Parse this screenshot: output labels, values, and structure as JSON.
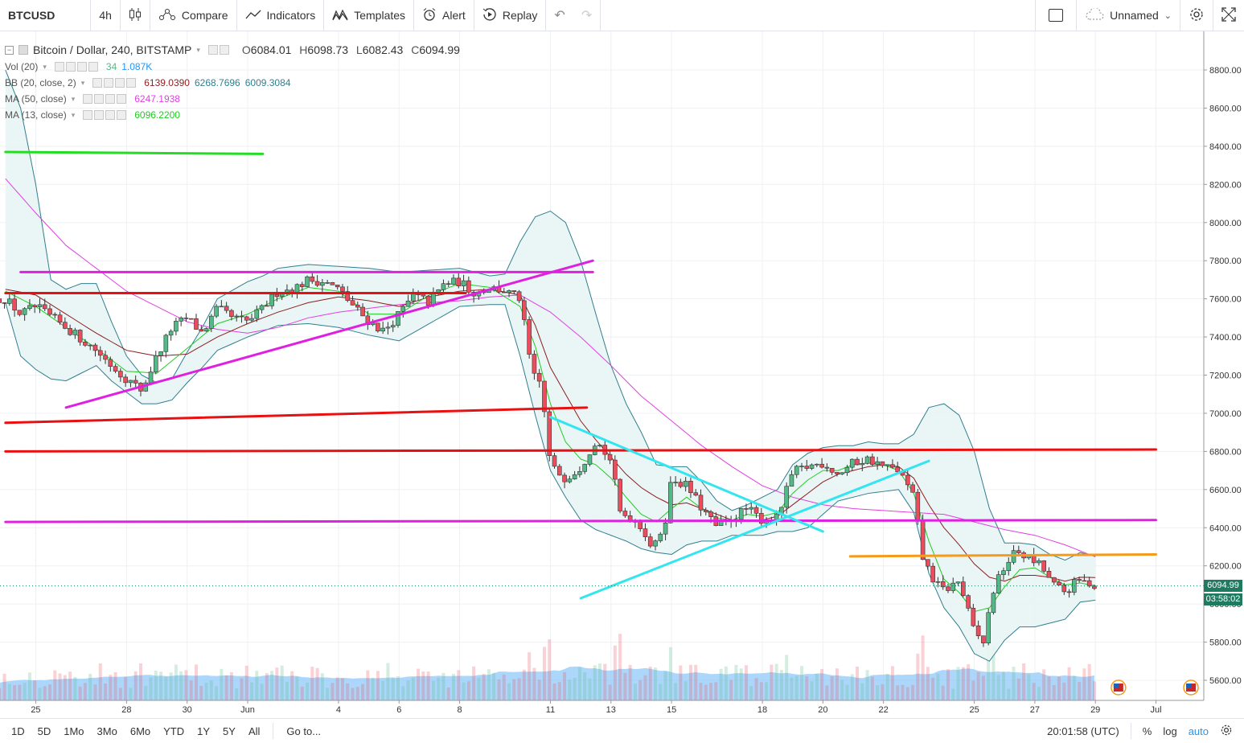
{
  "toolbar": {
    "symbol": "BTCUSD",
    "interval": "4h",
    "compare": "Compare",
    "indicators": "Indicators",
    "templates": "Templates",
    "alert": "Alert",
    "replay": "Replay",
    "layout_name": "Unnamed"
  },
  "legend": {
    "title": "Bitcoin / Dollar, 240, BITSTAMP",
    "ohlc": {
      "o_label": "O",
      "o": "6084.01",
      "h_label": "H",
      "h": "6098.73",
      "l_label": "L",
      "l": "6082.43",
      "c_label": "C",
      "c": "6094.99"
    },
    "vol": {
      "name": "Vol (20)",
      "v1": "34",
      "v2": "1.087K"
    },
    "bb": {
      "name": "BB (20, close, 2)",
      "v1": "6139.0390",
      "v2": "6268.7696",
      "v3": "6009.3084"
    },
    "ma50": {
      "name": "MA (50, close)",
      "v": "6247.1938"
    },
    "ma13": {
      "name": "MA (13, close)",
      "v": "6096.2200"
    }
  },
  "colors": {
    "up": "#53b987",
    "down": "#eb4d5c",
    "bb_line": "#2f7f8f",
    "bb_fill": "#e8f4f4",
    "ma50": "#e040e0",
    "ma13": "#22cc22",
    "ma20": "#8b1e1e",
    "vol_area": "#90caf9",
    "red_line": "#e81010",
    "magenta_line": "#e020e0",
    "green_line": "#22dd22",
    "cyan_line": "#33e5ef",
    "orange_line": "#f59a1a",
    "badge": "#1e7b5f"
  },
  "bottombar": {
    "ranges": [
      "1D",
      "5D",
      "1Mo",
      "3Mo",
      "6Mo",
      "YTD",
      "1Y",
      "5Y",
      "All"
    ],
    "goto": "Go to...",
    "time": "20:01:58 (UTC)",
    "pct": "%",
    "log": "log",
    "auto": "auto"
  },
  "chart_data": {
    "type": "candlestick",
    "title": "Bitcoin / Dollar, 240, BITSTAMP",
    "y_axis": {
      "min": 5520,
      "max": 8880,
      "ticks": [
        5600,
        5800,
        6000,
        6200,
        6400,
        6600,
        6800,
        7000,
        7200,
        7400,
        7600,
        7800,
        8000,
        8200,
        8400,
        8600,
        8800
      ],
      "tick_labels": [
        "5600.00",
        "5800.00",
        "6000.00",
        "6200.00",
        "6400.00",
        "6600.00",
        "6800.00",
        "7000.00",
        "7200.00",
        "7400.00",
        "7600.00",
        "7800.00",
        "8000.00",
        "8200.00",
        "8400.00",
        "8600.00",
        "8800.00"
      ]
    },
    "x_axis": {
      "labels": [
        "25",
        "28",
        "30",
        "Jun",
        "4",
        "6",
        "8",
        "11",
        "13",
        "15",
        "18",
        "20",
        "22",
        "25",
        "27",
        "29",
        "Jul"
      ],
      "label_days": [
        -7,
        -4,
        -2,
        0,
        3,
        5,
        7,
        10,
        12,
        14,
        17,
        19,
        21,
        24,
        26,
        28,
        30
      ]
    },
    "last_price": "6094.99",
    "countdown": "03:58:02",
    "close_keypoints": [
      [
        -8.0,
        7600
      ],
      [
        -7.5,
        7520
      ],
      [
        -7.0,
        7560
      ],
      [
        -6.0,
        7450
      ],
      [
        -5.0,
        7330
      ],
      [
        -4.5,
        7250
      ],
      [
        -4.0,
        7180
      ],
      [
        -3.5,
        7120
      ],
      [
        -3.0,
        7300
      ],
      [
        -2.5,
        7450
      ],
      [
        -2.0,
        7500
      ],
      [
        -1.5,
        7420
      ],
      [
        -1.0,
        7550
      ],
      [
        -0.5,
        7500
      ],
      [
        0.0,
        7480
      ],
      [
        0.5,
        7550
      ],
      [
        1.0,
        7640
      ],
      [
        1.5,
        7650
      ],
      [
        2.0,
        7700
      ],
      [
        2.5,
        7690
      ],
      [
        3.0,
        7650
      ],
      [
        3.5,
        7560
      ],
      [
        4.0,
        7480
      ],
      [
        4.5,
        7430
      ],
      [
        5.0,
        7520
      ],
      [
        5.5,
        7620
      ],
      [
        6.0,
        7580
      ],
      [
        6.5,
        7680
      ],
      [
        7.0,
        7690
      ],
      [
        7.5,
        7630
      ],
      [
        8.0,
        7660
      ],
      [
        8.5,
        7640
      ],
      [
        9.0,
        7600
      ],
      [
        9.4,
        7200
      ],
      [
        9.7,
        7150
      ],
      [
        10.0,
        6720
      ],
      [
        10.5,
        6660
      ],
      [
        11.0,
        6720
      ],
      [
        11.5,
        6860
      ],
      [
        12.0,
        6750
      ],
      [
        12.3,
        6480
      ],
      [
        12.7,
        6450
      ],
      [
        13.0,
        6410
      ],
      [
        13.4,
        6280
      ],
      [
        13.8,
        6450
      ],
      [
        14.0,
        6660
      ],
      [
        14.5,
        6620
      ],
      [
        15.0,
        6500
      ],
      [
        15.5,
        6400
      ],
      [
        16.0,
        6450
      ],
      [
        16.5,
        6500
      ],
      [
        17.0,
        6440
      ],
      [
        17.5,
        6450
      ],
      [
        18.0,
        6690
      ],
      [
        18.5,
        6720
      ],
      [
        19.0,
        6740
      ],
      [
        19.5,
        6680
      ],
      [
        20.0,
        6740
      ],
      [
        20.5,
        6760
      ],
      [
        21.0,
        6720
      ],
      [
        21.5,
        6700
      ],
      [
        22.0,
        6560
      ],
      [
        22.3,
        6240
      ],
      [
        22.7,
        6110
      ],
      [
        23.0,
        6070
      ],
      [
        23.5,
        6120
      ],
      [
        24.0,
        5850
      ],
      [
        24.3,
        5800
      ],
      [
        24.6,
        6060
      ],
      [
        25.0,
        6200
      ],
      [
        25.4,
        6280
      ],
      [
        25.8,
        6240
      ],
      [
        26.2,
        6200
      ],
      [
        26.6,
        6100
      ],
      [
        27.0,
        6060
      ],
      [
        27.4,
        6120
      ],
      [
        27.8,
        6110
      ],
      [
        28.0,
        6095
      ]
    ],
    "bb_upper_keypoints": [
      [
        -8,
        8800
      ],
      [
        -7.5,
        8600
      ],
      [
        -7,
        8200
      ],
      [
        -6.5,
        7700
      ],
      [
        -6,
        7650
      ],
      [
        -5.5,
        7680
      ],
      [
        -5,
        7680
      ],
      [
        -4.5,
        7480
      ],
      [
        -4,
        7300
      ],
      [
        -3.5,
        7200
      ],
      [
        -3,
        7160
      ],
      [
        -2.5,
        7180
      ],
      [
        -2,
        7320
      ],
      [
        -1.5,
        7450
      ],
      [
        -1,
        7600
      ],
      [
        0,
        7690
      ],
      [
        0.5,
        7720
      ],
      [
        1,
        7760
      ],
      [
        2,
        7780
      ],
      [
        3,
        7770
      ],
      [
        4,
        7760
      ],
      [
        5,
        7740
      ],
      [
        6,
        7750
      ],
      [
        7,
        7760
      ],
      [
        8,
        7720
      ],
      [
        8.5,
        7730
      ],
      [
        9,
        7900
      ],
      [
        9.5,
        8030
      ],
      [
        10,
        8060
      ],
      [
        10.5,
        8000
      ],
      [
        11,
        7800
      ],
      [
        11.5,
        7520
      ],
      [
        12,
        7250
      ],
      [
        12.5,
        7050
      ],
      [
        13,
        6900
      ],
      [
        13.5,
        6730
      ],
      [
        14,
        6720
      ],
      [
        14.5,
        6720
      ],
      [
        15,
        6640
      ],
      [
        15.5,
        6540
      ],
      [
        16,
        6490
      ],
      [
        16.5,
        6520
      ],
      [
        17,
        6560
      ],
      [
        17.5,
        6600
      ],
      [
        18,
        6730
      ],
      [
        18.5,
        6790
      ],
      [
        19,
        6820
      ],
      [
        19.5,
        6830
      ],
      [
        20,
        6830
      ],
      [
        20.5,
        6850
      ],
      [
        21,
        6840
      ],
      [
        21.5,
        6840
      ],
      [
        22,
        6890
      ],
      [
        22.5,
        7030
      ],
      [
        23,
        7050
      ],
      [
        23.5,
        6990
      ],
      [
        24,
        6800
      ],
      [
        24.5,
        6500
      ],
      [
        25,
        6320
      ],
      [
        25.5,
        6320
      ],
      [
        26,
        6310
      ],
      [
        26.5,
        6260
      ],
      [
        27,
        6230
      ],
      [
        27.5,
        6270
      ],
      [
        28,
        6250
      ]
    ],
    "bb_lower_keypoints": [
      [
        -8,
        7580
      ],
      [
        -7.5,
        7300
      ],
      [
        -7,
        7230
      ],
      [
        -6.5,
        7180
      ],
      [
        -6,
        7170
      ],
      [
        -5.5,
        7210
      ],
      [
        -5,
        7250
      ],
      [
        -4.5,
        7170
      ],
      [
        -4,
        7110
      ],
      [
        -3.5,
        7050
      ],
      [
        -3,
        7050
      ],
      [
        -2.5,
        7070
      ],
      [
        -2,
        7160
      ],
      [
        -1.5,
        7240
      ],
      [
        -1,
        7330
      ],
      [
        0,
        7400
      ],
      [
        0.5,
        7430
      ],
      [
        1,
        7460
      ],
      [
        2,
        7470
      ],
      [
        3,
        7450
      ],
      [
        4,
        7410
      ],
      [
        5,
        7380
      ],
      [
        6,
        7470
      ],
      [
        7,
        7560
      ],
      [
        8,
        7570
      ],
      [
        8.5,
        7570
      ],
      [
        9,
        7300
      ],
      [
        9.5,
        6990
      ],
      [
        10,
        6700
      ],
      [
        10.5,
        6560
      ],
      [
        11,
        6440
      ],
      [
        11.5,
        6390
      ],
      [
        12,
        6360
      ],
      [
        12.5,
        6330
      ],
      [
        13,
        6290
      ],
      [
        13.5,
        6270
      ],
      [
        14,
        6260
      ],
      [
        14.5,
        6310
      ],
      [
        15,
        6330
      ],
      [
        15.5,
        6330
      ],
      [
        16,
        6360
      ],
      [
        16.5,
        6360
      ],
      [
        17,
        6360
      ],
      [
        17.5,
        6380
      ],
      [
        18,
        6380
      ],
      [
        18.5,
        6400
      ],
      [
        19,
        6470
      ],
      [
        19.5,
        6540
      ],
      [
        20,
        6560
      ],
      [
        20.5,
        6580
      ],
      [
        21,
        6590
      ],
      [
        21.5,
        6600
      ],
      [
        22,
        6480
      ],
      [
        22.5,
        6160
      ],
      [
        23,
        5980
      ],
      [
        23.5,
        5880
      ],
      [
        24,
        5740
      ],
      [
        24.5,
        5700
      ],
      [
        25,
        5810
      ],
      [
        25.5,
        5880
      ],
      [
        26,
        5880
      ],
      [
        26.5,
        5900
      ],
      [
        27,
        5920
      ],
      [
        27.5,
        6010
      ],
      [
        28,
        6020
      ]
    ],
    "ma20_keypoints": [
      [
        -8,
        7650
      ],
      [
        -7,
        7620
      ],
      [
        -6,
        7520
      ],
      [
        -5,
        7420
      ],
      [
        -4,
        7330
      ],
      [
        -3,
        7300
      ],
      [
        -2,
        7310
      ],
      [
        -1,
        7400
      ],
      [
        0,
        7470
      ],
      [
        1,
        7530
      ],
      [
        2,
        7580
      ],
      [
        3,
        7610
      ],
      [
        4,
        7590
      ],
      [
        5,
        7560
      ],
      [
        6,
        7610
      ],
      [
        7,
        7640
      ],
      [
        8,
        7650
      ],
      [
        9,
        7620
      ],
      [
        9.5,
        7460
      ],
      [
        10,
        7240
      ],
      [
        10.5,
        7100
      ],
      [
        11,
        6960
      ],
      [
        11.5,
        6860
      ],
      [
        12,
        6770
      ],
      [
        12.5,
        6680
      ],
      [
        13,
        6610
      ],
      [
        13.5,
        6560
      ],
      [
        14,
        6520
      ],
      [
        14.5,
        6530
      ],
      [
        15,
        6500
      ],
      [
        15.5,
        6470
      ],
      [
        16,
        6440
      ],
      [
        16.5,
        6440
      ],
      [
        17,
        6440
      ],
      [
        17.5,
        6460
      ],
      [
        18,
        6520
      ],
      [
        18.5,
        6580
      ],
      [
        19,
        6640
      ],
      [
        19.5,
        6680
      ],
      [
        20,
        6700
      ],
      [
        20.5,
        6720
      ],
      [
        21,
        6730
      ],
      [
        21.5,
        6720
      ],
      [
        22,
        6660
      ],
      [
        22.5,
        6520
      ],
      [
        23,
        6400
      ],
      [
        23.5,
        6310
      ],
      [
        24,
        6210
      ],
      [
        24.5,
        6140
      ],
      [
        25,
        6120
      ],
      [
        25.5,
        6150
      ],
      [
        26,
        6150
      ],
      [
        26.5,
        6140
      ],
      [
        27,
        6120
      ],
      [
        27.5,
        6140
      ],
      [
        28,
        6139
      ]
    ],
    "ma50_keypoints": [
      [
        -8,
        8230
      ],
      [
        -7,
        8050
      ],
      [
        -6,
        7880
      ],
      [
        -5,
        7760
      ],
      [
        -4,
        7640
      ],
      [
        -3,
        7560
      ],
      [
        -2,
        7480
      ],
      [
        -1,
        7440
      ],
      [
        0,
        7420
      ],
      [
        1,
        7450
      ],
      [
        2,
        7500
      ],
      [
        3,
        7530
      ],
      [
        4,
        7550
      ],
      [
        5,
        7570
      ],
      [
        6,
        7580
      ],
      [
        7,
        7590
      ],
      [
        8,
        7610
      ],
      [
        9,
        7620
      ],
      [
        10,
        7530
      ],
      [
        11,
        7400
      ],
      [
        12,
        7250
      ],
      [
        13,
        7090
      ],
      [
        14,
        6960
      ],
      [
        15,
        6830
      ],
      [
        16,
        6720
      ],
      [
        17,
        6620
      ],
      [
        18,
        6560
      ],
      [
        19,
        6520
      ],
      [
        20,
        6500
      ],
      [
        21,
        6490
      ],
      [
        22,
        6480
      ],
      [
        23,
        6470
      ],
      [
        24,
        6430
      ],
      [
        25,
        6390
      ],
      [
        26,
        6360
      ],
      [
        27,
        6310
      ],
      [
        28,
        6247
      ]
    ],
    "ma13_keypoints": [
      [
        -8,
        7640
      ],
      [
        -7,
        7560
      ],
      [
        -6,
        7450
      ],
      [
        -5,
        7340
      ],
      [
        -4,
        7220
      ],
      [
        -3,
        7210
      ],
      [
        -2,
        7340
      ],
      [
        -1,
        7470
      ],
      [
        0,
        7520
      ],
      [
        1,
        7600
      ],
      [
        2,
        7660
      ],
      [
        3,
        7640
      ],
      [
        4,
        7520
      ],
      [
        5,
        7520
      ],
      [
        6,
        7620
      ],
      [
        7,
        7680
      ],
      [
        8,
        7660
      ],
      [
        9,
        7560
      ],
      [
        9.5,
        7350
      ],
      [
        10,
        7050
      ],
      [
        10.5,
        6850
      ],
      [
        11,
        6760
      ],
      [
        11.5,
        6730
      ],
      [
        12,
        6660
      ],
      [
        12.5,
        6560
      ],
      [
        13,
        6470
      ],
      [
        13.5,
        6430
      ],
      [
        14,
        6500
      ],
      [
        14.5,
        6560
      ],
      [
        15,
        6500
      ],
      [
        15.5,
        6450
      ],
      [
        16,
        6440
      ],
      [
        16.5,
        6470
      ],
      [
        17,
        6460
      ],
      [
        17.5,
        6480
      ],
      [
        18,
        6580
      ],
      [
        18.5,
        6650
      ],
      [
        19,
        6700
      ],
      [
        19.5,
        6700
      ],
      [
        20,
        6730
      ],
      [
        20.5,
        6740
      ],
      [
        21,
        6730
      ],
      [
        21.5,
        6700
      ],
      [
        22,
        6580
      ],
      [
        22.5,
        6330
      ],
      [
        23,
        6130
      ],
      [
        23.5,
        6060
      ],
      [
        24,
        5960
      ],
      [
        24.5,
        5980
      ],
      [
        25,
        6090
      ],
      [
        25.5,
        6180
      ],
      [
        26,
        6190
      ],
      [
        26.5,
        6140
      ],
      [
        27,
        6100
      ],
      [
        27.5,
        6110
      ],
      [
        28,
        6096
      ]
    ],
    "trendlines": [
      {
        "color": "green",
        "p1": [
          -8,
          8370
        ],
        "p2": [
          0.5,
          8360
        ]
      },
      {
        "color": "magenta",
        "p1": [
          -7.5,
          7740
        ],
        "p2": [
          11.4,
          7740
        ]
      },
      {
        "color": "red",
        "p1": [
          -8,
          7630
        ],
        "p2": [
          7.2,
          7630
        ]
      },
      {
        "color": "magenta",
        "p1": [
          -6,
          7030
        ],
        "p2": [
          11.4,
          7800
        ]
      },
      {
        "color": "red",
        "p1": [
          -8,
          6950
        ],
        "p2": [
          11.2,
          7030
        ]
      },
      {
        "color": "red",
        "p1": [
          -8,
          6800
        ],
        "p2": [
          30,
          6810
        ]
      },
      {
        "color": "magenta",
        "p1": [
          -8,
          6430
        ],
        "p2": [
          30,
          6440
        ]
      },
      {
        "color": "cyan",
        "p1": [
          10,
          6980
        ],
        "p2": [
          19,
          6380
        ]
      },
      {
        "color": "cyan",
        "p1": [
          11,
          6030
        ],
        "p2": [
          22.5,
          6750
        ]
      },
      {
        "color": "orange",
        "p1": [
          19.9,
          6250
        ],
        "p2": [
          30,
          6260
        ]
      }
    ]
  }
}
